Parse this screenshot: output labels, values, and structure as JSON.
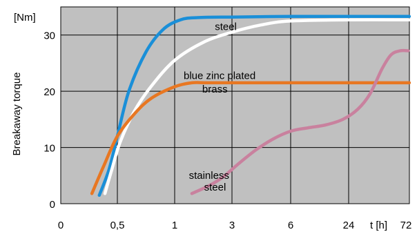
{
  "chart_data": {
    "type": "line",
    "ylabel": "Breakaway  torque",
    "yunit": "[Nm]",
    "xunit": "t [h]",
    "x_ticks": [
      "0",
      "0,5",
      "1",
      "3",
      "6",
      "24",
      "72"
    ],
    "y_ticks": [
      0,
      10,
      20,
      30
    ],
    "ylim": [
      0,
      35
    ],
    "grid": true,
    "plot_background": "#c0c0c0",
    "series": [
      {
        "name": "steel",
        "color": "#1a8fd8",
        "points": [
          [
            0.68,
            1.5
          ],
          [
            0.85,
            6
          ],
          [
            1,
            12
          ],
          [
            1.2,
            20
          ],
          [
            1.5,
            27
          ],
          [
            1.8,
            31
          ],
          [
            2.1,
            32.7
          ],
          [
            2.4,
            33.1
          ],
          [
            3,
            33.2
          ],
          [
            4,
            33.3
          ],
          [
            5,
            33.3
          ],
          [
            6,
            33.3
          ]
        ]
      },
      {
        "name": "blue zinc plated",
        "color": "#ffffff",
        "points": [
          [
            0.78,
            1.8
          ],
          [
            0.9,
            6
          ],
          [
            1.05,
            11
          ],
          [
            1.3,
            16.5
          ],
          [
            1.6,
            21
          ],
          [
            2,
            25.5
          ],
          [
            2.5,
            28.7
          ],
          [
            3,
            30.5
          ],
          [
            3.5,
            31.8
          ],
          [
            4,
            32.5
          ],
          [
            5,
            32.7
          ],
          [
            6,
            32.7
          ]
        ]
      },
      {
        "name": "brass",
        "color": "#e87722",
        "points": [
          [
            0.55,
            1.8
          ],
          [
            0.75,
            6.5
          ],
          [
            1,
            12
          ],
          [
            1.3,
            16
          ],
          [
            1.6,
            18.8
          ],
          [
            2,
            20.8
          ],
          [
            2.3,
            21.5
          ],
          [
            2.6,
            21.5
          ],
          [
            3.5,
            21.5
          ],
          [
            4.5,
            21.5
          ],
          [
            6,
            21.5
          ]
        ]
      },
      {
        "name": "stainless steel",
        "color": "#c9819e",
        "points": [
          [
            2.3,
            1.8
          ],
          [
            2.6,
            3.2
          ],
          [
            2.85,
            4.8
          ],
          [
            3.1,
            7
          ],
          [
            3.4,
            9.5
          ],
          [
            3.7,
            11.5
          ],
          [
            4,
            12.9
          ],
          [
            4.3,
            13.5
          ],
          [
            4.6,
            14
          ],
          [
            4.9,
            15
          ],
          [
            5.15,
            16.8
          ],
          [
            5.35,
            19.5
          ],
          [
            5.55,
            24
          ],
          [
            5.7,
            26.5
          ],
          [
            5.85,
            27.2
          ],
          [
            5.98,
            27.2
          ]
        ]
      }
    ],
    "labels": [
      {
        "text": "steel",
        "series": "steel"
      },
      {
        "text": "blue zinc plated",
        "series": "blue zinc plated"
      },
      {
        "text": "brass",
        "series": "brass"
      },
      {
        "text": "stainless",
        "series": "stainless steel"
      },
      {
        "text": "steel",
        "series": "stainless steel"
      }
    ]
  }
}
